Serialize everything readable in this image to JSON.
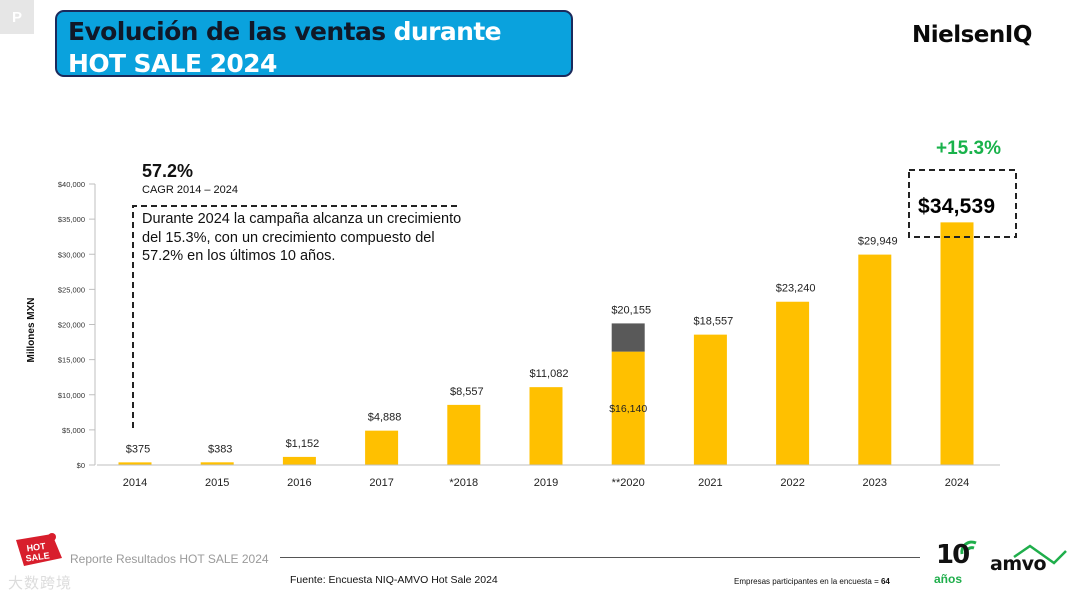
{
  "badge": "P",
  "title": {
    "part1": "Evolución de las ventas ",
    "part2": "durante",
    "line2": "HOT SALE 2024"
  },
  "brand": {
    "logo": "NielsenIQ"
  },
  "cagr": {
    "value": "57.2%",
    "label": "CAGR 2014 – 2024"
  },
  "description": "Durante 2024 la campaña alcanza un crecimiento del 15.3%, con un crecimiento compuesto del 57.2% en los últimos 10 años.",
  "highlight": {
    "growth": "+15.3%",
    "value_label": "$34,539"
  },
  "footer": {
    "report": "Reporte Resultados HOT SALE 2024",
    "source": "Fuente: Encuesta NIQ-AMVO Hot Sale 2024",
    "participants_label": "Empresas participantes en la encuesta = ",
    "participants_value": "64",
    "hotsale_logo_text_1": "HOT",
    "hotsale_logo_text_2": "SALE",
    "logo_10": "10",
    "logo_anos": "años",
    "logo_amvo": "amvo",
    "watermark": "大数跨境"
  },
  "colors": {
    "bar": "#ffc000",
    "bar_extra": "#595959",
    "title_bg": "#0aa2dd",
    "growth": "#19b24b"
  },
  "chart_data": {
    "type": "bar",
    "title": "Evolución de las ventas durante HOT SALE 2024",
    "ylabel": "Millones MXN",
    "xlabel": "",
    "ylim": [
      0,
      40000
    ],
    "yticks": [
      0,
      5000,
      10000,
      15000,
      20000,
      25000,
      30000,
      35000,
      40000
    ],
    "ytick_labels": [
      "$0",
      "$5,000",
      "$10,000",
      "$15,000",
      "$20,000",
      "$25,000",
      "$30,000",
      "$35,000",
      "$40,000"
    ],
    "categories": [
      "2014",
      "2015",
      "2016",
      "2017",
      "*2018",
      "2019",
      "**2020",
      "2021",
      "2022",
      "2023",
      "2024"
    ],
    "values": [
      375,
      383,
      1152,
      4888,
      8557,
      11082,
      20155,
      18557,
      23240,
      29949,
      34539
    ],
    "value_labels": [
      "$375",
      "$383",
      "$1,152",
      "$4,888",
      "$8,557",
      "$11,082",
      "$20,155",
      "$18,557",
      "$23,240",
      "$29,949",
      ""
    ],
    "stacked_2020": {
      "category": "**2020",
      "base": 16140,
      "base_label": "$16,140",
      "total": 20155
    },
    "grid": false
  }
}
